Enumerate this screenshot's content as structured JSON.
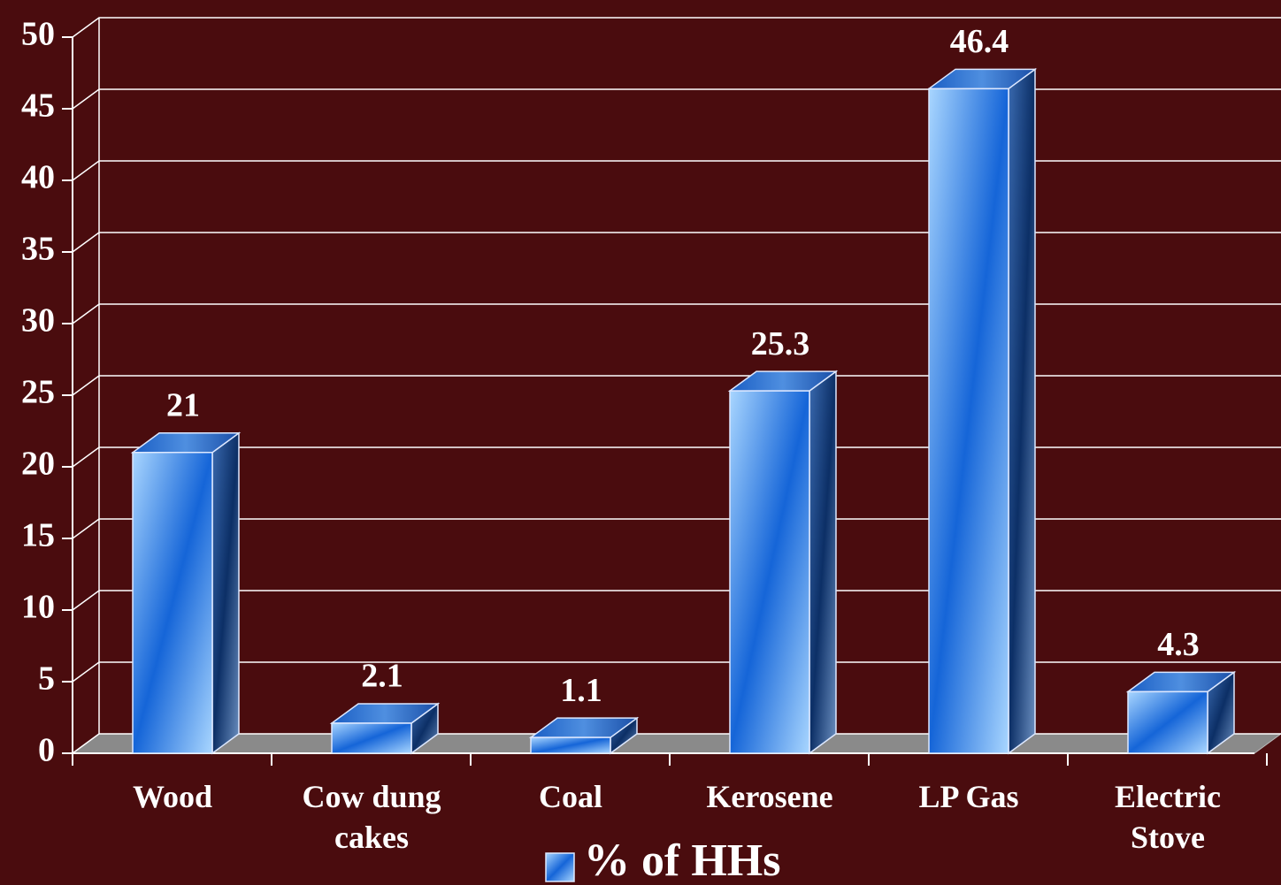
{
  "chart_data": {
    "type": "bar",
    "categories": [
      "Wood",
      "Cow dung cakes",
      "Coal",
      "Kerosene",
      "LP Gas",
      "Electric Stove"
    ],
    "series": [
      {
        "name": "% of HHs",
        "color": "#1f6fd6",
        "values": [
          21,
          2.1,
          1.1,
          25.3,
          46.4,
          4.3
        ]
      }
    ],
    "ylim": [
      0,
      50
    ],
    "yticks": [
      0,
      5,
      10,
      15,
      20,
      25,
      30,
      35,
      40,
      45,
      50
    ],
    "grid": true,
    "legend": "bottom"
  }
}
